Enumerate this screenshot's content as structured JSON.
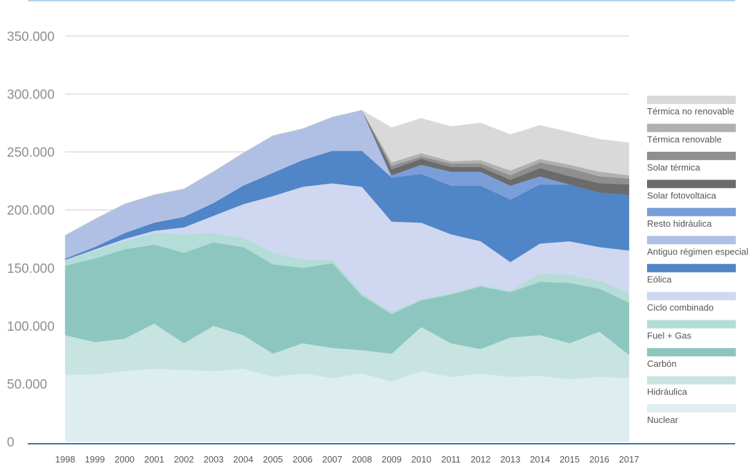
{
  "chart_data": {
    "type": "area",
    "stacked": true,
    "title": "",
    "xlabel": "",
    "ylabel": "",
    "ylim": [
      0,
      350000
    ],
    "yticks": [
      0,
      50000,
      100000,
      150000,
      200000,
      250000,
      300000,
      350000
    ],
    "ytick_labels": [
      "0",
      "50.000",
      "100.000",
      "150.000",
      "200.000",
      "250.000",
      "300.000",
      "350.000"
    ],
    "grid": true,
    "legend_position": "right",
    "x": [
      "1998",
      "1999",
      "2000",
      "2001",
      "2002",
      "2003",
      "2004",
      "2005",
      "2006",
      "2007",
      "2008",
      "2009",
      "2010",
      "2011",
      "2012",
      "2013",
      "2014",
      "2015",
      "2016",
      "2017"
    ],
    "series": [
      {
        "name": "Nuclear",
        "color": "#deedef",
        "values": [
          58000,
          58000,
          61000,
          63000,
          62000,
          61000,
          63000,
          56000,
          59000,
          55000,
          59000,
          52000,
          61000,
          56000,
          59000,
          56000,
          57000,
          54000,
          56000,
          55000
        ]
      },
      {
        "name": "Hidráulica",
        "color": "#c8e4e1",
        "values": [
          34000,
          28000,
          28000,
          39000,
          23000,
          39000,
          29000,
          20000,
          26000,
          26000,
          20000,
          24000,
          38000,
          29000,
          21000,
          34000,
          35000,
          31000,
          39000,
          20000
        ]
      },
      {
        "name": "Carbón",
        "color": "#8cc6bf",
        "values": [
          60000,
          72000,
          77000,
          68000,
          78000,
          72000,
          76000,
          77000,
          65000,
          73000,
          47000,
          34000,
          23000,
          42000,
          54000,
          39000,
          46000,
          52000,
          37000,
          45000
        ]
      },
      {
        "name": "Fuel + Gas",
        "color": "#b3ddd6",
        "values": [
          5000,
          7000,
          7000,
          10000,
          16000,
          8000,
          8000,
          10000,
          7000,
          3000,
          2000,
          2000,
          1000,
          1000,
          1000,
          1000,
          7000,
          7000,
          7000,
          8000
        ]
      },
      {
        "name": "Ciclo combinado",
        "color": "#cfd8f0",
        "values": [
          0,
          1000,
          2000,
          2000,
          6000,
          15000,
          29000,
          49000,
          63000,
          66000,
          92000,
          78000,
          66000,
          51000,
          38000,
          25000,
          26000,
          29000,
          29000,
          37000
        ]
      },
      {
        "name": "Eólica",
        "color": "#5085c7",
        "values": [
          1000,
          2000,
          5000,
          7000,
          9000,
          11000,
          16000,
          20000,
          23000,
          28000,
          31000,
          38000,
          42000,
          42000,
          48000,
          54000,
          51000,
          49000,
          47000,
          48000
        ]
      },
      {
        "name": "Antiguo régimen especial",
        "color": "#b0c0e4",
        "values": [
          20000,
          24000,
          25000,
          24000,
          24000,
          27000,
          28000,
          32000,
          27000,
          29000,
          35000,
          0,
          0,
          0,
          0,
          0,
          0,
          0,
          0,
          0
        ]
      },
      {
        "name": "Resto hidráulica",
        "color": "#7a9ed8",
        "values": [
          0,
          0,
          0,
          0,
          0,
          0,
          0,
          0,
          0,
          0,
          0,
          2000,
          8000,
          12000,
          12000,
          12000,
          7000,
          0,
          0,
          0
        ]
      },
      {
        "name": "Solar fotovoltaica",
        "color": "#6b6b6b",
        "values": [
          0,
          0,
          0,
          0,
          0,
          0,
          0,
          0,
          0,
          0,
          0,
          5000,
          5000,
          4000,
          4000,
          5000,
          7000,
          7000,
          8000,
          9000
        ]
      },
      {
        "name": "Solar térmica",
        "color": "#8f8f8f",
        "values": [
          0,
          0,
          0,
          0,
          0,
          0,
          0,
          0,
          0,
          0,
          0,
          3000,
          2000,
          3000,
          3000,
          4000,
          5000,
          7000,
          6000,
          5000
        ]
      },
      {
        "name": "Térmica renovable",
        "color": "#b0b0b0",
        "values": [
          0,
          0,
          0,
          0,
          0,
          0,
          0,
          0,
          0,
          0,
          0,
          3000,
          3000,
          2000,
          3000,
          4000,
          3000,
          3000,
          4000,
          3000
        ]
      },
      {
        "name": "Térmica no renovable",
        "color": "#d9d9d9",
        "values": [
          0,
          0,
          0,
          0,
          0,
          0,
          0,
          0,
          0,
          0,
          0,
          30000,
          30000,
          30000,
          32000,
          31000,
          29000,
          28000,
          28000,
          28000
        ]
      }
    ],
    "legend_order": [
      "Térmica no renovable",
      "Térmica renovable",
      "Solar térmica",
      "Solar fotovoltaica",
      "Resto hidráulica",
      "Antiguo régimen especial",
      "Eólica",
      "Ciclo combinado",
      "Fuel + Gas",
      "Carbón",
      "Hidráulica",
      "Nuclear"
    ]
  }
}
